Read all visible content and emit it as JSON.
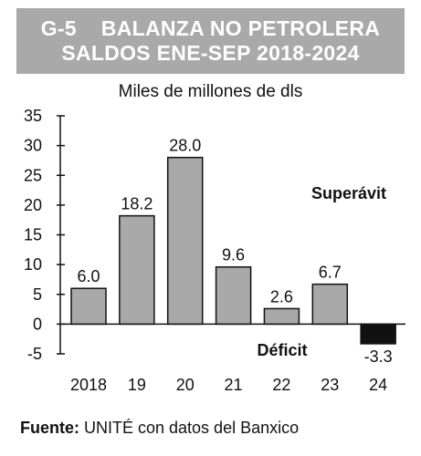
{
  "header": {
    "line1": "G-5    BALANZA NO PETROLERA",
    "line2": "SALDOS ENE-SEP 2018-2024"
  },
  "chart_data": {
    "type": "bar",
    "title": "G-5    BALANZA NO PETROLERA SALDOS ENE-SEP 2018-2024",
    "ylabel": "Miles de millones de dls",
    "categories": [
      "2018",
      "19",
      "20",
      "21",
      "22",
      "23",
      "24"
    ],
    "values": [
      6.0,
      18.2,
      28.0,
      9.6,
      2.6,
      6.7,
      -3.3
    ],
    "data_labels": [
      "6.0",
      "18.2",
      "28.0",
      "9.6",
      "2.6",
      "6.7",
      "-3.3"
    ],
    "ylim": [
      -5,
      35
    ],
    "yticks": [
      35,
      30,
      25,
      20,
      15,
      10,
      5,
      0,
      -5
    ],
    "grid": false,
    "annotations": [
      "Superávit",
      "Déficit"
    ],
    "colors": {
      "positive": "#a9a9a9",
      "negative": "#111111",
      "stroke": "#111111"
    }
  },
  "source": {
    "label": "Fuente:",
    "text": " UNITÉ con datos del Banxico"
  }
}
